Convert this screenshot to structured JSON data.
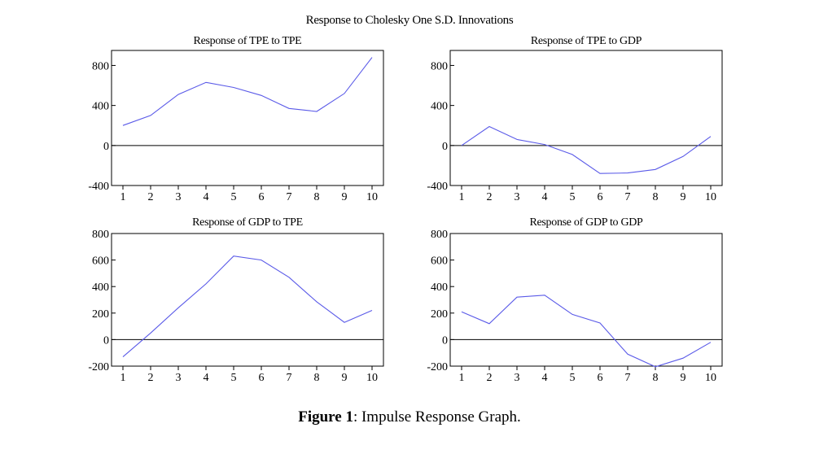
{
  "title": "Response to Cholesky One S.D. Innovations",
  "caption": {
    "label": "Figure 1",
    "text": ": Impulse Response Graph."
  },
  "chart_data": [
    {
      "type": "line",
      "title": "Response of TPE to TPE",
      "x": [
        1,
        2,
        3,
        4,
        5,
        6,
        7,
        8,
        9,
        10
      ],
      "values": [
        200,
        300,
        510,
        630,
        580,
        500,
        370,
        340,
        520,
        880
      ],
      "ylim": [
        -400,
        950
      ],
      "yticks": [
        -400,
        0,
        400,
        800
      ]
    },
    {
      "type": "line",
      "title": "Response of TPE to GDP",
      "x": [
        1,
        2,
        3,
        4,
        5,
        6,
        7,
        8,
        9,
        10
      ],
      "values": [
        0,
        190,
        60,
        10,
        -90,
        -280,
        -275,
        -240,
        -110,
        90
      ],
      "ylim": [
        -400,
        950
      ],
      "yticks": [
        -400,
        0,
        400,
        800
      ]
    },
    {
      "type": "line",
      "title": "Response of GDP to TPE",
      "x": [
        1,
        2,
        3,
        4,
        5,
        6,
        7,
        8,
        9,
        10
      ],
      "values": [
        -130,
        50,
        240,
        420,
        630,
        600,
        470,
        285,
        130,
        220
      ],
      "ylim": [
        -200,
        800
      ],
      "yticks": [
        -200,
        0,
        200,
        400,
        600,
        800
      ]
    },
    {
      "type": "line",
      "title": "Response of GDP to GDP",
      "x": [
        1,
        2,
        3,
        4,
        5,
        6,
        7,
        8,
        9,
        10
      ],
      "values": [
        210,
        120,
        320,
        335,
        190,
        125,
        -110,
        -205,
        -140,
        -20
      ],
      "ylim": [
        -200,
        800
      ],
      "yticks": [
        -200,
        0,
        200,
        400,
        600,
        800
      ]
    }
  ],
  "colors": {
    "line": "#5a5ae8",
    "axis": "#000000"
  }
}
